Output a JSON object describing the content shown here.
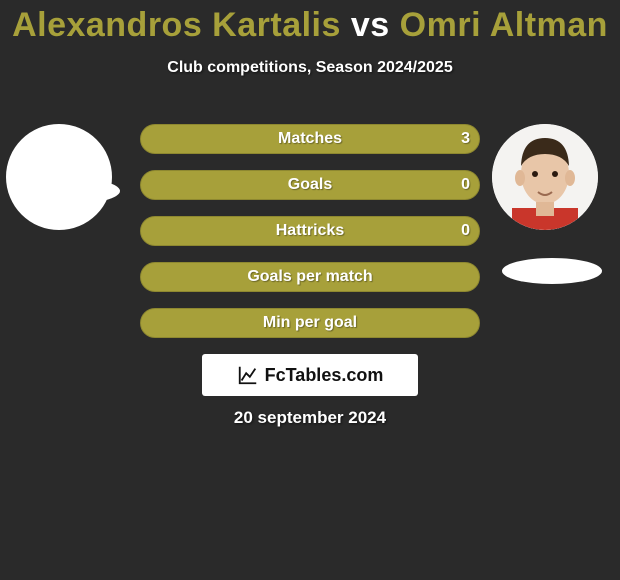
{
  "title": {
    "player1": "Alexandros Kartalis",
    "vs": "vs",
    "player2": "Omri Altman",
    "color_p1": "#a7a03a",
    "color_vs": "#ffffff",
    "color_p2": "#a7a03a"
  },
  "subtitle": "Club competitions, Season 2024/2025",
  "date": "20 september 2024",
  "watermark": {
    "text": "FcTables.com",
    "icon_color": "#111111"
  },
  "background_color": "#2a2a2a",
  "avatars": {
    "left_bg": "#ffffff",
    "right_bg": "#ffffff"
  },
  "bars": {
    "track_color": "#a7a03a",
    "track_border": "#8e8830",
    "radius": 15,
    "height": 30,
    "gap": 16,
    "rows": [
      {
        "label": "Matches",
        "left": "",
        "right": "3"
      },
      {
        "label": "Goals",
        "left": "",
        "right": "0"
      },
      {
        "label": "Hattricks",
        "left": "",
        "right": "0"
      },
      {
        "label": "Goals per match",
        "left": "",
        "right": ""
      },
      {
        "label": "Min per goal",
        "left": "",
        "right": ""
      }
    ]
  }
}
